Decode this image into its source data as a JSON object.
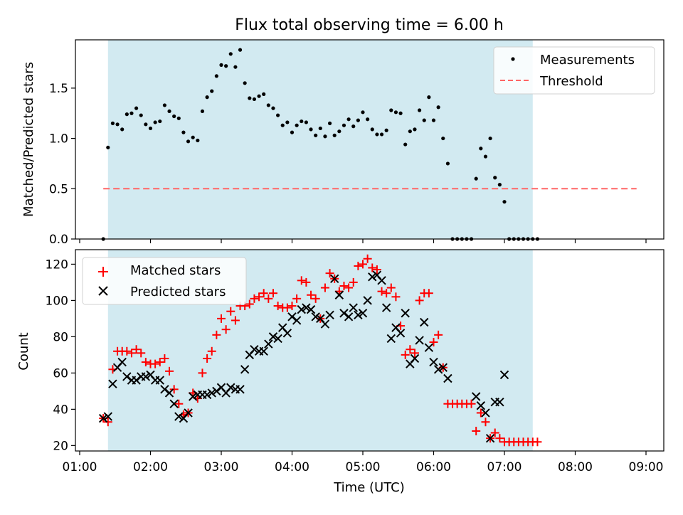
{
  "figure": {
    "title": "Flux total observing time = 6.00 h",
    "xlabel": "Time (UTC)",
    "xticks": [
      "01:00",
      "02:00",
      "03:00",
      "04:00",
      "05:00",
      "06:00",
      "07:00",
      "08:00",
      "09:00"
    ],
    "shaded_interval": [
      "01:24",
      "07:24"
    ],
    "shade_color": "#add8e6"
  },
  "chart_data": [
    {
      "type": "scatter",
      "ylabel": "Matched/Predicted stars",
      "ylim": [
        0,
        1.98
      ],
      "yticks": [
        "0.0",
        "0.5",
        "1.0",
        "1.5"
      ],
      "legend_position": "top-right",
      "series": [
        {
          "name": "Measurements",
          "color": "#000000",
          "points": [
            [
              "01:20",
              0.0
            ],
            [
              "01:24",
              0.91
            ],
            [
              "01:28",
              1.15
            ],
            [
              "01:32",
              1.14
            ],
            [
              "01:36",
              1.09
            ],
            [
              "01:40",
              1.24
            ],
            [
              "01:44",
              1.25
            ],
            [
              "01:48",
              1.3
            ],
            [
              "01:52",
              1.23
            ],
            [
              "01:56",
              1.14
            ],
            [
              "02:00",
              1.1
            ],
            [
              "02:04",
              1.16
            ],
            [
              "02:08",
              1.17
            ],
            [
              "02:12",
              1.33
            ],
            [
              "02:16",
              1.27
            ],
            [
              "02:20",
              1.22
            ],
            [
              "02:24",
              1.2
            ],
            [
              "02:28",
              1.06
            ],
            [
              "02:32",
              0.97
            ],
            [
              "02:36",
              1.01
            ],
            [
              "02:40",
              0.98
            ],
            [
              "02:44",
              1.27
            ],
            [
              "02:48",
              1.41
            ],
            [
              "02:52",
              1.47
            ],
            [
              "02:56",
              1.62
            ],
            [
              "03:00",
              1.73
            ],
            [
              "03:04",
              1.72
            ],
            [
              "03:08",
              1.84
            ],
            [
              "03:12",
              1.71
            ],
            [
              "03:16",
              1.88
            ],
            [
              "03:20",
              1.55
            ],
            [
              "03:24",
              1.4
            ],
            [
              "03:28",
              1.39
            ],
            [
              "03:32",
              1.42
            ],
            [
              "03:36",
              1.44
            ],
            [
              "03:40",
              1.33
            ],
            [
              "03:44",
              1.3
            ],
            [
              "03:48",
              1.23
            ],
            [
              "03:52",
              1.13
            ],
            [
              "03:56",
              1.16
            ],
            [
              "04:00",
              1.06
            ],
            [
              "04:04",
              1.13
            ],
            [
              "04:08",
              1.17
            ],
            [
              "04:12",
              1.16
            ],
            [
              "04:16",
              1.09
            ],
            [
              "04:20",
              1.03
            ],
            [
              "04:24",
              1.1
            ],
            [
              "04:28",
              1.02
            ],
            [
              "04:32",
              1.15
            ],
            [
              "04:36",
              1.03
            ],
            [
              "04:40",
              1.07
            ],
            [
              "04:44",
              1.13
            ],
            [
              "04:48",
              1.19
            ],
            [
              "04:52",
              1.12
            ],
            [
              "04:56",
              1.18
            ],
            [
              "05:00",
              1.26
            ],
            [
              "05:04",
              1.19
            ],
            [
              "05:08",
              1.09
            ],
            [
              "05:12",
              1.04
            ],
            [
              "05:16",
              1.04
            ],
            [
              "05:20",
              1.08
            ],
            [
              "05:24",
              1.28
            ],
            [
              "05:28",
              1.26
            ],
            [
              "05:32",
              1.25
            ],
            [
              "05:36",
              0.94
            ],
            [
              "05:40",
              1.07
            ],
            [
              "05:44",
              1.09
            ],
            [
              "05:48",
              1.28
            ],
            [
              "05:52",
              1.18
            ],
            [
              "05:56",
              1.41
            ],
            [
              "06:00",
              1.18
            ],
            [
              "06:04",
              1.31
            ],
            [
              "06:08",
              1.0
            ],
            [
              "06:12",
              0.75
            ],
            [
              "06:16",
              0.0
            ],
            [
              "06:20",
              0.0
            ],
            [
              "06:24",
              0.0
            ],
            [
              "06:28",
              0.0
            ],
            [
              "06:32",
              0.0
            ],
            [
              "06:36",
              0.6
            ],
            [
              "06:40",
              0.9
            ],
            [
              "06:44",
              0.82
            ],
            [
              "06:48",
              1.0
            ],
            [
              "06:52",
              0.61
            ],
            [
              "06:56",
              0.54
            ],
            [
              "07:00",
              0.37
            ],
            [
              "07:04",
              0.0
            ],
            [
              "07:08",
              0.0
            ],
            [
              "07:12",
              0.0
            ],
            [
              "07:16",
              0.0
            ],
            [
              "07:20",
              0.0
            ],
            [
              "07:24",
              0.0
            ],
            [
              "07:28",
              0.0
            ]
          ]
        },
        {
          "name": "Threshold",
          "color": "#ff6666",
          "style": "dashed",
          "x": [
            "01:20",
            "08:52"
          ],
          "y": 0.5
        }
      ]
    },
    {
      "type": "scatter",
      "ylabel": "Count",
      "ylim": [
        17,
        128
      ],
      "yticks": [
        "20",
        "40",
        "60",
        "80",
        "100",
        "120"
      ],
      "legend_position": "top-left",
      "series": [
        {
          "name": "Matched stars",
          "marker": "+",
          "color": "#ff0000",
          "values": [
            35,
            33,
            62,
            72,
            72,
            72,
            71,
            73,
            71,
            66,
            65,
            65,
            66,
            68,
            61,
            51,
            43,
            37,
            38,
            49,
            46,
            60,
            68,
            72,
            81,
            90,
            84,
            94,
            89,
            97,
            97,
            98,
            101,
            102,
            104,
            101,
            104,
            97,
            96,
            96,
            97,
            101,
            111,
            110,
            103,
            101,
            90,
            107,
            115,
            112,
            105,
            108,
            107,
            110,
            119,
            120,
            123,
            118,
            117,
            105,
            104,
            107,
            102,
            86,
            70,
            73,
            71,
            100,
            104,
            104,
            77,
            81,
            63,
            43,
            43,
            43,
            43,
            43,
            43,
            28,
            38,
            33,
            24,
            27,
            24,
            22,
            22,
            22,
            22,
            22,
            22,
            22,
            22
          ]
        },
        {
          "name": "Predicted stars",
          "marker": "x",
          "color": "#000000",
          "points": [
            [
              "01:20",
              35
            ],
            [
              "01:24",
              36
            ],
            [
              "01:28",
              54
            ],
            [
              "01:32",
              63
            ],
            [
              "01:36",
              66
            ],
            [
              "01:40",
              58
            ],
            [
              "01:44",
              56
            ],
            [
              "01:48",
              56
            ],
            [
              "01:52",
              58
            ],
            [
              "01:56",
              58
            ],
            [
              "02:00",
              59
            ],
            [
              "02:04",
              56
            ],
            [
              "02:08",
              56
            ],
            [
              "02:12",
              51
            ],
            [
              "02:16",
              49
            ],
            [
              "02:20",
              43
            ],
            [
              "02:24",
              36
            ],
            [
              "02:28",
              35
            ],
            [
              "02:32",
              38
            ],
            [
              "02:36",
              47
            ],
            [
              "02:40",
              48
            ],
            [
              "02:44",
              48
            ],
            [
              "02:48",
              48
            ],
            [
              "02:52",
              49
            ],
            [
              "02:56",
              50
            ],
            [
              "03:00",
              52
            ],
            [
              "03:04",
              49
            ],
            [
              "03:08",
              52
            ],
            [
              "03:12",
              51
            ],
            [
              "03:16",
              51
            ],
            [
              "03:20",
              62
            ],
            [
              "03:24",
              70
            ],
            [
              "03:28",
              73
            ],
            [
              "03:32",
              72
            ],
            [
              "03:36",
              72
            ],
            [
              "03:40",
              76
            ],
            [
              "03:44",
              80
            ],
            [
              "03:48",
              79
            ],
            [
              "03:52",
              85
            ],
            [
              "03:56",
              82
            ],
            [
              "04:00",
              91
            ],
            [
              "04:04",
              89
            ],
            [
              "04:08",
              95
            ],
            [
              "04:12",
              96
            ],
            [
              "04:16",
              95
            ],
            [
              "04:20",
              91
            ],
            [
              "04:24",
              90
            ],
            [
              "04:28",
              87
            ],
            [
              "04:32",
              92
            ],
            [
              "04:36",
              112
            ],
            [
              "04:40",
              103
            ],
            [
              "04:44",
              93
            ],
            [
              "04:48",
              91
            ],
            [
              "04:52",
              96
            ],
            [
              "04:56",
              92
            ],
            [
              "05:00",
              93
            ],
            [
              "05:04",
              100
            ],
            [
              "05:08",
              113
            ],
            [
              "05:12",
              114
            ],
            [
              "05:16",
              111
            ],
            [
              "05:20",
              96
            ],
            [
              "05:24",
              79
            ],
            [
              "05:28",
              85
            ],
            [
              "05:32",
              82
            ],
            [
              "05:36",
              93
            ],
            [
              "05:40",
              65
            ],
            [
              "05:44",
              68
            ],
            [
              "05:48",
              78
            ],
            [
              "05:52",
              88
            ],
            [
              "05:56",
              74
            ],
            [
              "06:00",
              66
            ],
            [
              "06:04",
              62
            ],
            [
              "06:08",
              63
            ],
            [
              "06:12",
              57
            ],
            [
              "06:36",
              47
            ],
            [
              "06:40",
              42
            ],
            [
              "06:44",
              38
            ],
            [
              "06:48",
              24
            ],
            [
              "06:52",
              44
            ],
            [
              "06:56",
              44
            ],
            [
              "07:00",
              59
            ]
          ]
        }
      ]
    }
  ]
}
